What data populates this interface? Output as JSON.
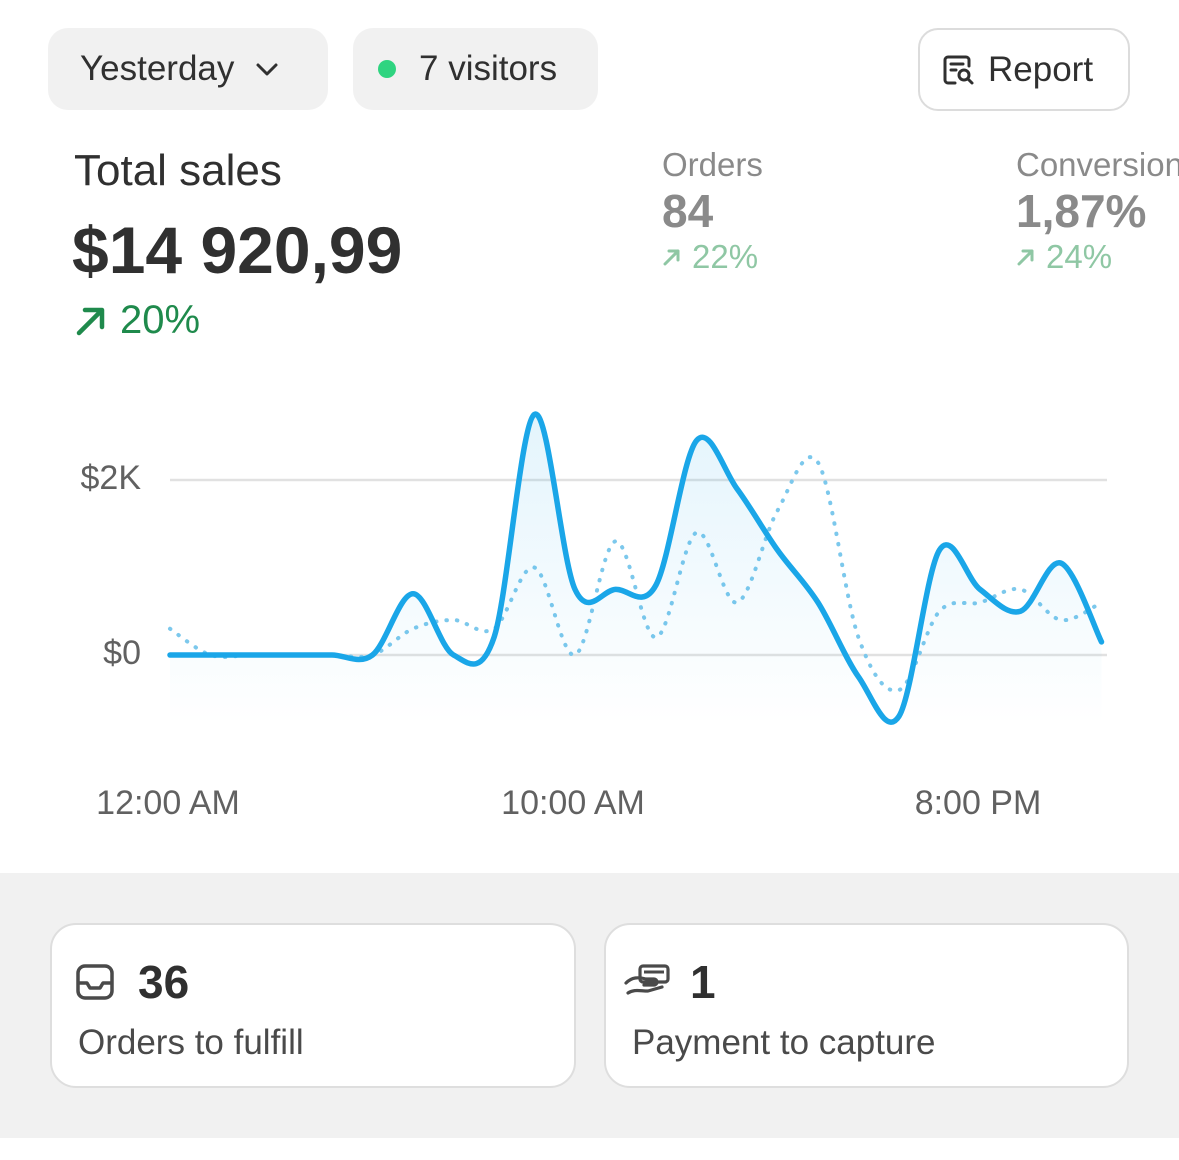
{
  "header": {
    "date_filter": "Yesterday",
    "visitors": "7 visitors",
    "report_button": "Report"
  },
  "summary": {
    "title": "Total sales",
    "value": "$14 920,99",
    "delta": "20%"
  },
  "kpis": [
    {
      "label": "Orders",
      "value": "84",
      "delta": "22%"
    },
    {
      "label": "Conversion",
      "value": "1,87%",
      "delta": "24%"
    }
  ],
  "chart_data": {
    "type": "line",
    "categories": [
      "12:00 AM",
      null,
      null,
      null,
      null,
      null,
      null,
      null,
      null,
      null,
      "10:00 AM",
      null,
      null,
      null,
      null,
      null,
      null,
      null,
      null,
      null,
      "8:00 PM",
      null,
      null,
      null
    ],
    "series": [
      {
        "color": "#1aa6e8",
        "style": "solid",
        "values": [
          0,
          0,
          0,
          0,
          0,
          0,
          700,
          0,
          200,
          2750,
          750,
          750,
          800,
          2450,
          1900,
          1200,
          600,
          -250,
          -700,
          1200,
          750,
          500,
          1050,
          150
        ]
      },
      {
        "color": "#7cc8ec",
        "style": "dotted",
        "values": [
          300,
          0,
          0,
          0,
          0,
          0,
          300,
          400,
          300,
          1000,
          0,
          1300,
          200,
          1400,
          600,
          1650,
          2200,
          200,
          -400,
          500,
          600,
          750,
          400,
          600
        ]
      }
    ],
    "ylim": [
      -800,
      3000
    ],
    "yticks": [
      {
        "value": 0,
        "label": "$0"
      },
      {
        "value": 2000,
        "label": "$2K"
      }
    ],
    "grid": true
  },
  "tasks": [
    {
      "count": "36",
      "label": "Orders to fulfill"
    },
    {
      "count": "1",
      "label": "Payment to capture"
    }
  ]
}
